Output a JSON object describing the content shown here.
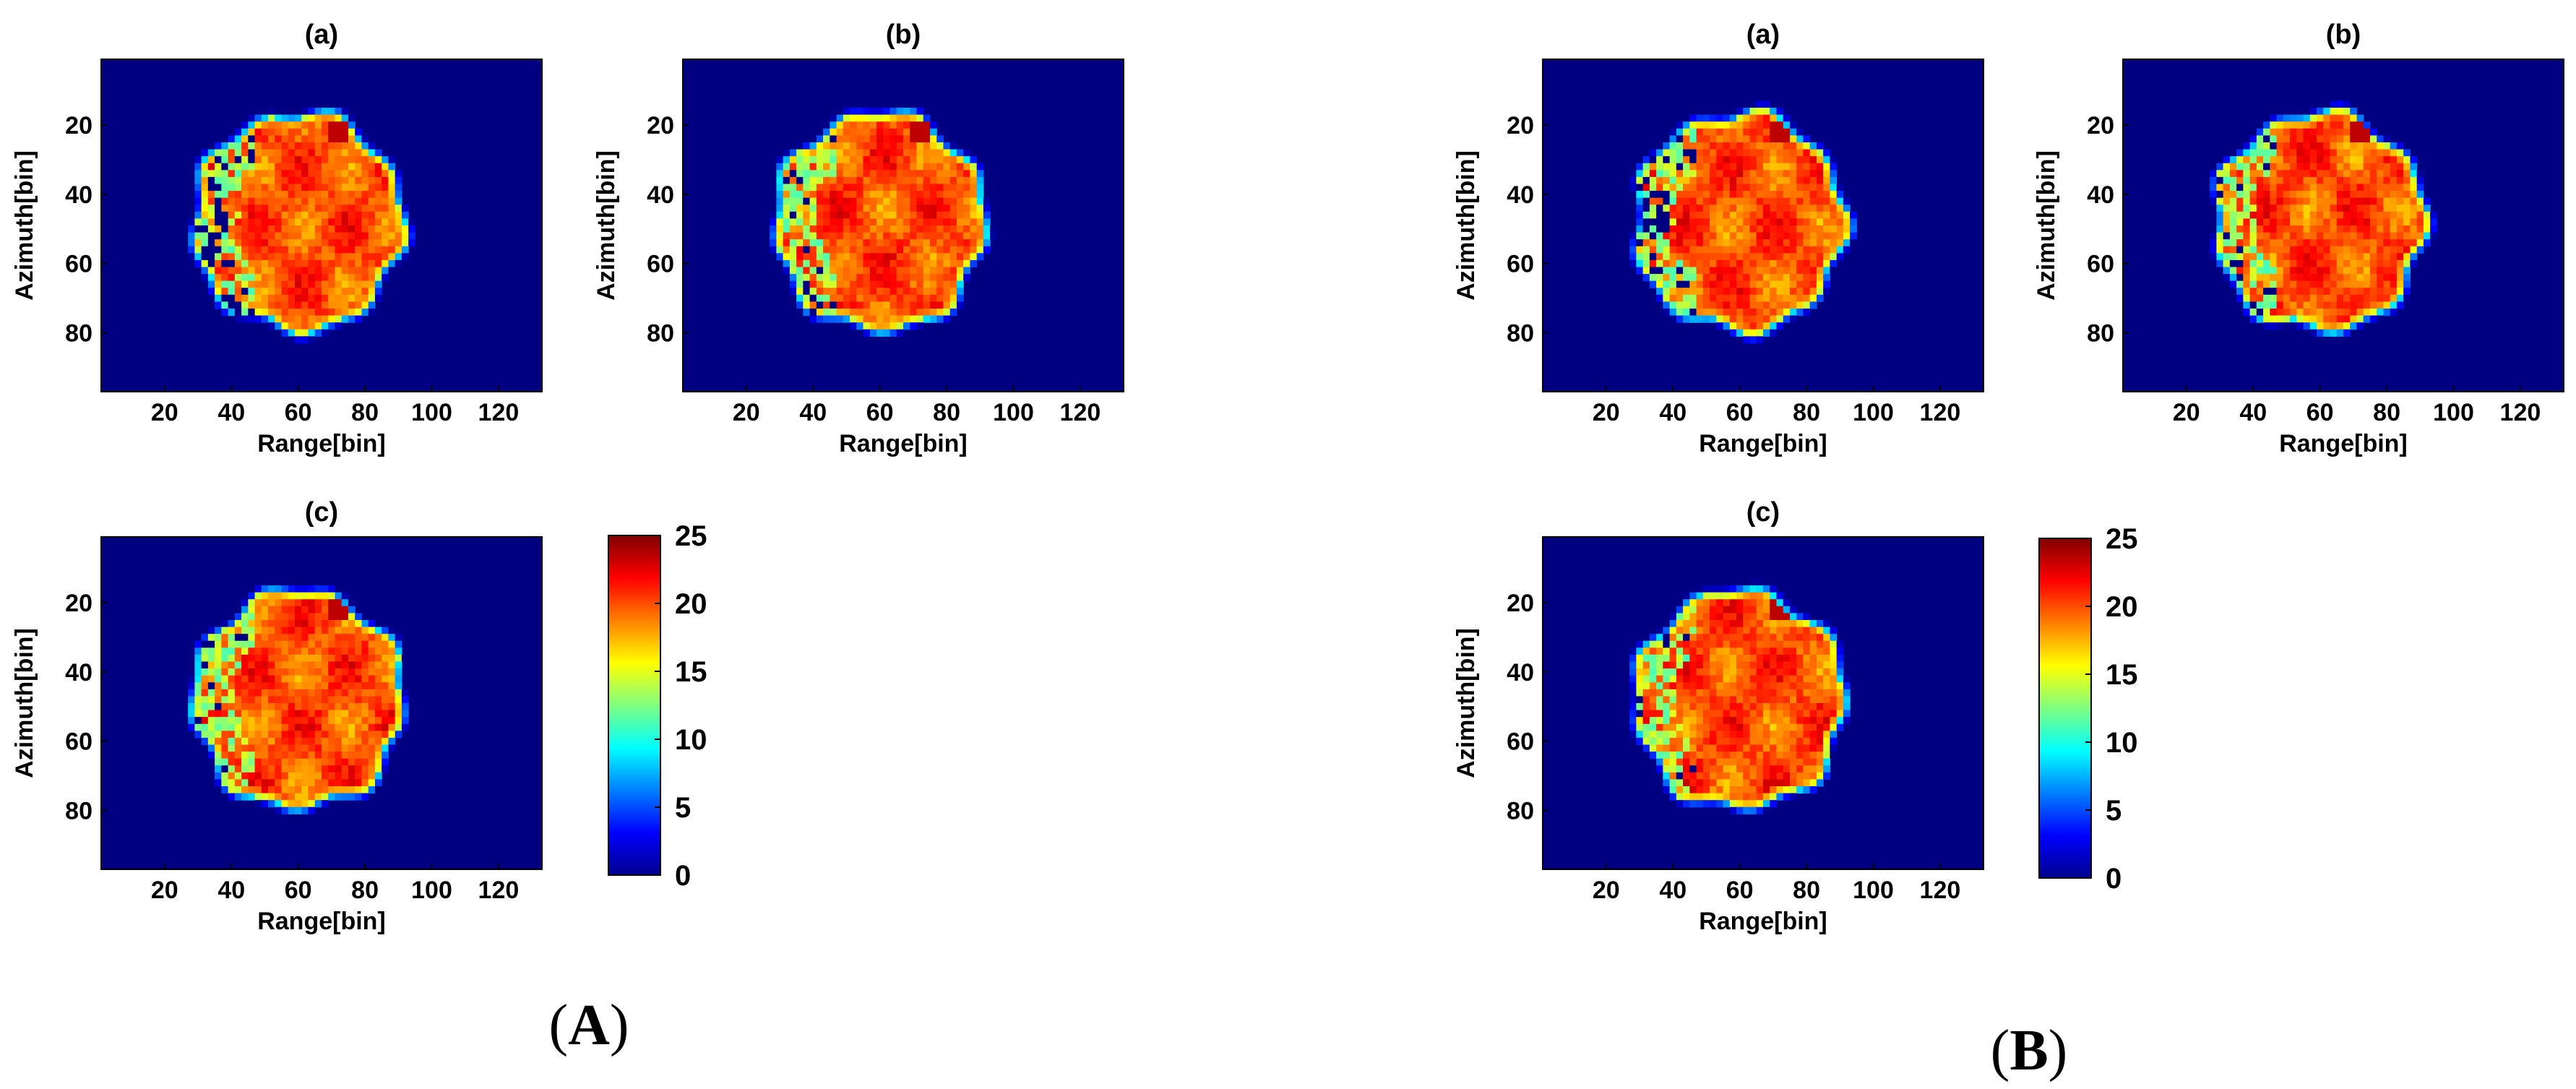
{
  "chart_data": {
    "type": "heatmap",
    "figures": [
      {
        "label_bold": "A",
        "label_open": "(",
        "label_close": ")",
        "panels": [
          {
            "title": "(a)",
            "gap_severity": 1.0,
            "hot_spot": null
          },
          {
            "title": "(b)",
            "gap_severity": 0.45,
            "hot_spot": null
          },
          {
            "title": "(c)",
            "gap_severity": 0.2,
            "hot_spot": null
          }
        ]
      },
      {
        "label_bold": "B",
        "label_open": "(",
        "label_close": ")",
        "panels": [
          {
            "title": "(a)",
            "gap_severity": 0.9,
            "hot_spot": null
          },
          {
            "title": "(b)",
            "gap_severity": 0.35,
            "hot_spot": null
          },
          {
            "title": "(c)",
            "gap_severity": 0.15,
            "hot_spot": null
          }
        ]
      }
    ],
    "xlabel": "Range[bin]",
    "ylabel": "Azimuth[bin]",
    "x_ticks": [
      20,
      40,
      60,
      80,
      100,
      120
    ],
    "y_ticks": [
      20,
      40,
      60,
      80
    ],
    "xlim": [
      1,
      133
    ],
    "ylim": [
      1,
      97
    ],
    "y_reversed": true,
    "colorbar": {
      "ticks": [
        0,
        5,
        10,
        15,
        20,
        25
      ],
      "clim": [
        0,
        25
      ],
      "colormap": "jet"
    },
    "target": {
      "center_range": 60,
      "center_azimuth": 48,
      "radius": 31,
      "mean_value": 20,
      "background_value": 0
    }
  }
}
